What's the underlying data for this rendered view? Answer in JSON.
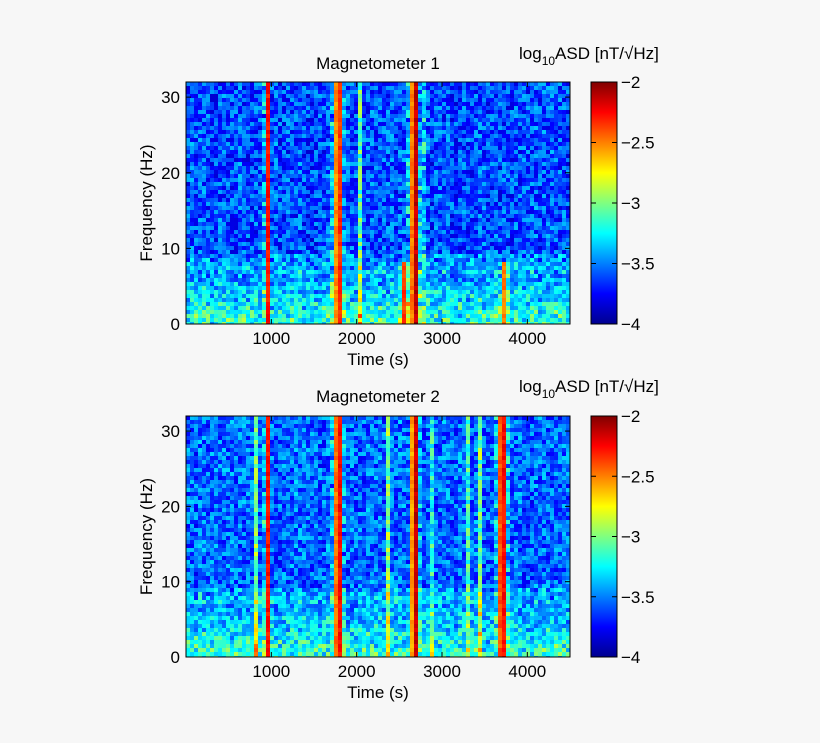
{
  "chart_data": [
    {
      "type": "heatmap",
      "title": "Magnetometer 1",
      "xlabel": "Time (s)",
      "ylabel": "Frequency (Hz)",
      "xlim": [
        0,
        4500
      ],
      "ylim": [
        0,
        32
      ],
      "xticks": [
        1000,
        2000,
        3000,
        4000
      ],
      "yticks": [
        0,
        10,
        20,
        30
      ],
      "colorbar": {
        "label_main": "log",
        "label_sub": "10",
        "label_rest": "ASD [nT/√Hz]",
        "range": [
          -4,
          -2
        ],
        "ticks": [
          -2,
          -2.5,
          -3,
          -3.5,
          -4
        ],
        "tick_labels": [
          "−2",
          "−2.5",
          "−3",
          "−3.5",
          "−4"
        ],
        "colormap": "jet"
      },
      "background_level": -3.6,
      "low_freq_band": {
        "freq_max": 9,
        "level": -3.1
      },
      "bursts": [
        {
          "time": 950,
          "width": 55,
          "freq_top": 32,
          "level": -2.0
        },
        {
          "time": 1790,
          "width": 90,
          "freq_top": 32,
          "level": -2.1
        },
        {
          "time": 2560,
          "width": 60,
          "freq_top": 8,
          "level": -2.2
        },
        {
          "time": 2690,
          "width": 100,
          "freq_top": 32,
          "level": -2.0
        },
        {
          "time": 3720,
          "width": 60,
          "freq_top": 8,
          "level": -2.3
        }
      ]
    },
    {
      "type": "heatmap",
      "title": "Magnetometer 2",
      "xlabel": "Time (s)",
      "ylabel": "Frequency (Hz)",
      "xlim": [
        0,
        4500
      ],
      "ylim": [
        0,
        32
      ],
      "xticks": [
        1000,
        2000,
        3000,
        4000
      ],
      "yticks": [
        0,
        10,
        20,
        30
      ],
      "colorbar": {
        "label_main": "log",
        "label_sub": "10",
        "label_rest": "ASD [nT/√Hz]",
        "range": [
          -4,
          -2
        ],
        "ticks": [
          -2,
          -2.5,
          -3,
          -3.5,
          -4
        ],
        "tick_labels": [
          "−2",
          "−2.5",
          "−3",
          "−3.5",
          "−4"
        ],
        "colormap": "jet"
      },
      "background_level": -3.55,
      "low_freq_band": {
        "freq_max": 9,
        "level": -3.1
      },
      "bursts": [
        {
          "time": 950,
          "width": 55,
          "freq_top": 32,
          "level": -2.0
        },
        {
          "time": 1790,
          "width": 80,
          "freq_top": 32,
          "level": -2.0
        },
        {
          "time": 2690,
          "width": 85,
          "freq_top": 32,
          "level": -2.0
        },
        {
          "time": 3710,
          "width": 90,
          "freq_top": 32,
          "level": -2.0
        }
      ]
    }
  ]
}
